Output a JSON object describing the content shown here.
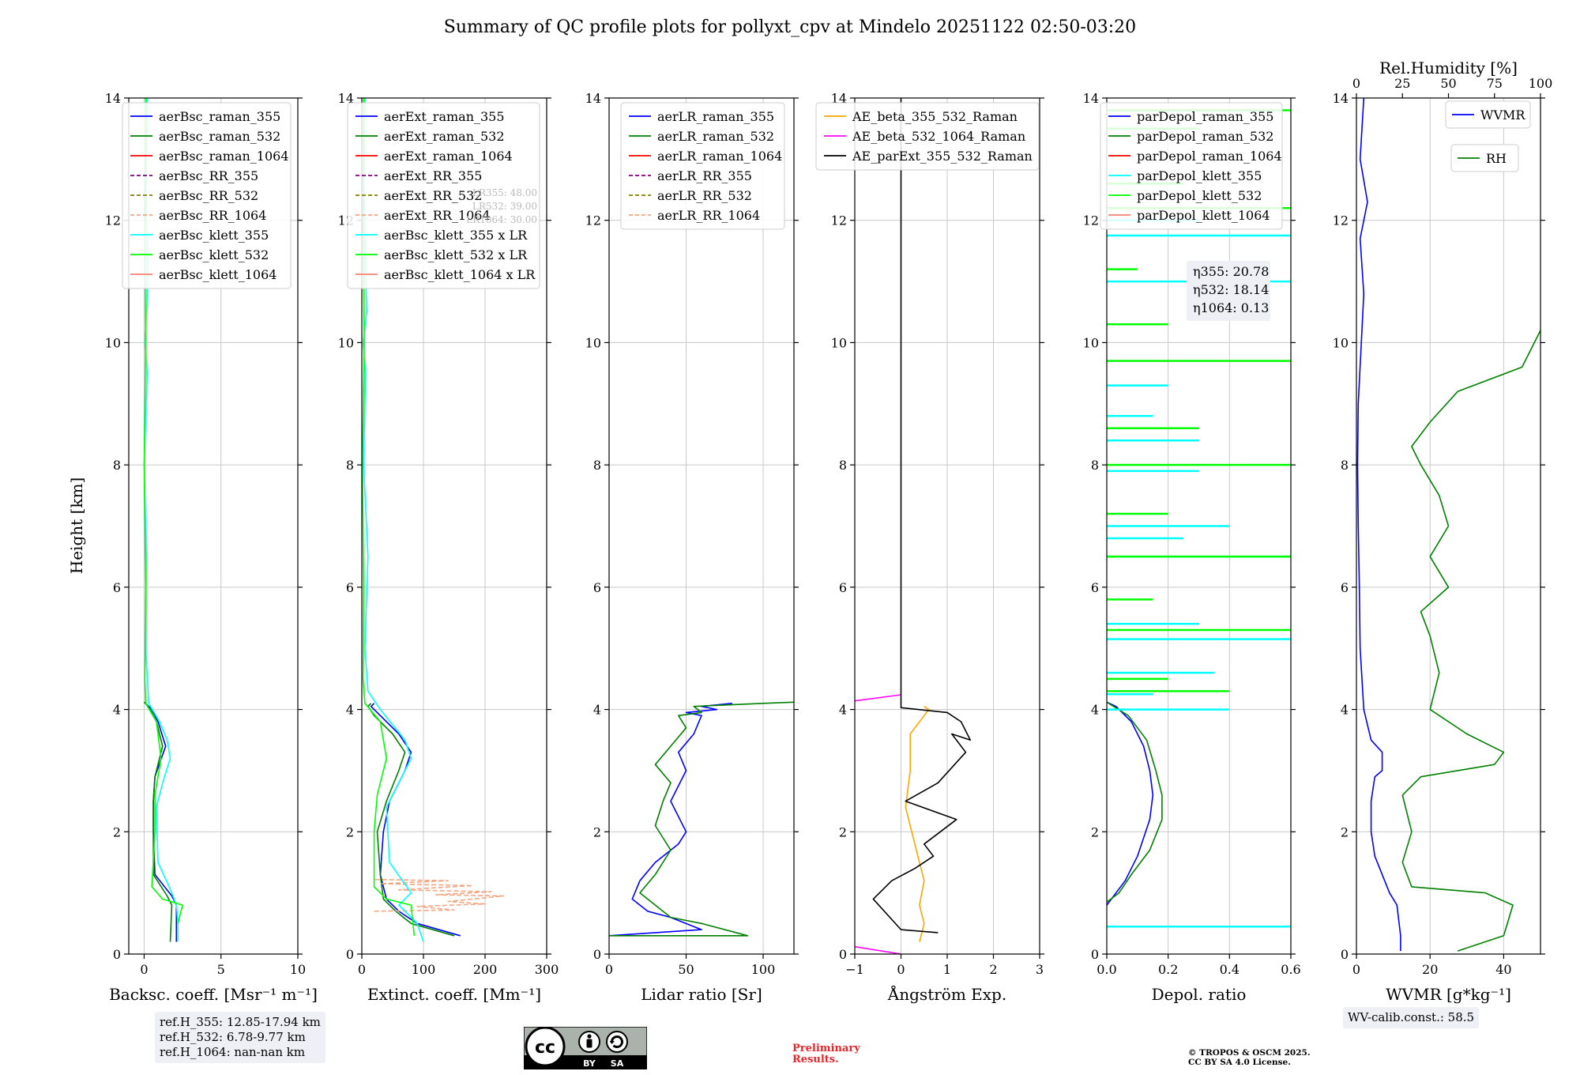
{
  "figure_title": "Summary of QC profile plots for pollyxt_cpv at Mindelo 20251122 02:50-03:20",
  "ref_heights": [
    "ref.H_355: 12.85-17.94 km",
    "ref.H_532: 6.78-9.77 km",
    "ref.H_1064: nan-nan km"
  ],
  "wv_calib": "WV-calib.const.: 58.5",
  "preliminary": [
    "Preliminary",
    "Results."
  ],
  "copyright": [
    "© TROPOS & OSCM 2025.",
    "CC BY SA 4.0 License."
  ],
  "cc_logo": {
    "icons": [
      "cc",
      "by",
      "sa"
    ],
    "labels": [
      "BY",
      "SA"
    ]
  },
  "chart_data": [
    {
      "type": "line",
      "id": "backscatter",
      "xlabel": "Backsc. coeff. [Msr$^{-1}$ m$^{-1}$]",
      "xlabel_text": "Backsc. coeff. [Msr⁻¹ m⁻¹]",
      "ylabel": "Height [km]",
      "xlim": [
        -1,
        10
      ],
      "ylim": [
        0,
        14
      ],
      "xticks": [
        0,
        5,
        10
      ],
      "yticks": [
        0,
        2,
        4,
        6,
        8,
        10,
        12,
        14
      ],
      "legend": [
        "aerBsc_raman_355",
        "aerBsc_raman_532",
        "aerBsc_raman_1064",
        "aerBsc_RR_355",
        "aerBsc_RR_532",
        "aerBsc_RR_1064",
        "aerBsc_klett_355",
        "aerBsc_klett_532",
        "aerBsc_klett_1064"
      ],
      "series": [
        {
          "name": "aerBsc_raman_355",
          "color": "#0000ff",
          "x": [
            2.1,
            2.1,
            1.8,
            0.7,
            0.6,
            0.6,
            0.7,
            1.4,
            0.9,
            0.5,
            0.0
          ],
          "y": [
            0.2,
            0.8,
            0.95,
            1.3,
            2.0,
            2.5,
            2.9,
            3.4,
            3.8,
            4.0,
            4.12
          ]
        },
        {
          "name": "aerBsc_raman_532",
          "color": "#008000",
          "x": [
            1.7,
            1.8,
            1.5,
            0.6,
            0.6,
            0.6,
            0.7,
            1.2,
            0.8,
            0.4,
            0.0
          ],
          "y": [
            0.2,
            0.8,
            0.95,
            1.3,
            2.0,
            2.5,
            2.9,
            3.4,
            3.8,
            4.0,
            4.12
          ]
        },
        {
          "name": "aerBsc_klett_355",
          "color": "#00ffff",
          "x": [
            0.2,
            0.1,
            0.25,
            0.05,
            0.2,
            0.0,
            0.15,
            0.1,
            0.3,
            1.0,
            1.5,
            1.7,
            1.2,
            0.8,
            0.9,
            1.8,
            2.1,
            2.2,
            2.2
          ],
          "y": [
            14.0,
            12.5,
            11.0,
            10.0,
            9.5,
            8.0,
            6.5,
            5.0,
            4.1,
            3.8,
            3.5,
            3.2,
            2.8,
            2.4,
            1.5,
            1.0,
            0.8,
            0.5,
            0.2
          ]
        },
        {
          "name": "aerBsc_klett_532",
          "color": "#00ff00",
          "x": [
            0.1,
            0.05,
            0.1,
            0.0,
            0.1,
            0.05,
            0.1,
            0.8,
            1.1,
            0.7,
            0.7,
            0.5,
            1.2,
            2.5,
            2.2
          ],
          "y": [
            14.0,
            12.0,
            10.0,
            8.0,
            6.0,
            4.5,
            4.1,
            3.8,
            3.2,
            2.6,
            2.0,
            1.1,
            0.9,
            0.8,
            0.5
          ]
        }
      ]
    },
    {
      "type": "line",
      "id": "extinction",
      "xlabel": "Extinct. coeff. [Mm$^{-1}$]",
      "xlabel_text": "Extinct. coeff. [Mm⁻¹]",
      "xlim": [
        0,
        300
      ],
      "ylim": [
        0,
        14
      ],
      "xticks": [
        0,
        100,
        200,
        300
      ],
      "yticks": [
        0,
        2,
        4,
        6,
        8,
        10,
        12,
        14
      ],
      "legend": [
        "aerExt_raman_355",
        "aerExt_raman_532",
        "aerExt_raman_1064",
        "aerExt_RR_355",
        "aerExt_RR_532",
        "aerExt_RR_1064",
        "aerBsc_klett_355 x LR",
        "aerBsc_klett_532 x LR",
        "aerBsc_klett_1064 x LR"
      ],
      "lr_annotation": [
        "LR355: 48.00",
        "LR532: 39.00",
        "LR1064: 30.00"
      ],
      "series": [
        {
          "name": "aerExt_raman_355",
          "color": "#0000ff",
          "x": [
            160,
            90,
            60,
            40,
            30,
            35,
            45,
            70,
            80,
            60,
            30,
            15,
            20
          ],
          "y": [
            0.3,
            0.5,
            0.7,
            0.9,
            1.3,
            2.0,
            2.5,
            3.0,
            3.3,
            3.6,
            3.9,
            4.05,
            4.1
          ]
        },
        {
          "name": "aerExt_raman_532",
          "color": "#008000",
          "x": [
            150,
            80,
            55,
            35,
            30,
            25,
            40,
            60,
            70,
            50,
            20,
            10,
            15
          ],
          "y": [
            0.3,
            0.5,
            0.7,
            0.9,
            1.3,
            2.0,
            2.5,
            3.0,
            3.3,
            3.6,
            3.9,
            4.05,
            4.1
          ]
        },
        {
          "name": "aerExt_RR_1064",
          "color": "#f4a582",
          "x": [
            20,
            150,
            90,
            200,
            140,
            230,
            120,
            210,
            60,
            180,
            30,
            140,
            20
          ],
          "y": [
            0.7,
            0.72,
            0.78,
            0.82,
            0.86,
            0.95,
            0.97,
            1.02,
            1.05,
            1.12,
            1.15,
            1.2,
            1.22
          ]
        },
        {
          "name": "aerBsc_klett_355 x LR",
          "color": "#00ffff",
          "x": [
            5,
            3,
            8,
            2,
            6,
            3,
            10,
            5,
            10,
            30,
            70,
            80,
            60,
            40,
            45,
            80,
            60,
            90,
            100
          ],
          "y": [
            14.0,
            12.5,
            10.5,
            10.0,
            9.5,
            8.0,
            6.5,
            5.0,
            4.3,
            4.0,
            3.5,
            3.2,
            2.8,
            2.4,
            1.5,
            1.0,
            0.8,
            0.5,
            0.2
          ]
        },
        {
          "name": "aerBsc_klett_532 x LR",
          "color": "#00ff00",
          "x": [
            3,
            2,
            4,
            1,
            3,
            2,
            5,
            30,
            40,
            25,
            20,
            20,
            40,
            80,
            85
          ],
          "y": [
            14.0,
            12.0,
            10.0,
            8.0,
            6.0,
            4.5,
            4.1,
            3.8,
            3.2,
            2.6,
            2.0,
            1.1,
            0.9,
            0.8,
            0.3
          ]
        }
      ]
    },
    {
      "type": "line",
      "id": "lidar_ratio",
      "xlabel": "Lidar ratio [Sr]",
      "xlabel_text": "Lidar ratio [Sr]",
      "xlim": [
        0,
        120
      ],
      "ylim": [
        0,
        14
      ],
      "xticks": [
        0,
        50,
        100
      ],
      "yticks": [
        0,
        2,
        4,
        6,
        8,
        10,
        12,
        14
      ],
      "legend": [
        "aerLR_raman_355",
        "aerLR_raman_532",
        "aerLR_raman_1064",
        "aerLR_RR_355",
        "aerLR_RR_532",
        "aerLR_RR_1064"
      ],
      "series": [
        {
          "name": "aerLR_raman_355",
          "color": "#0000ff",
          "x": [
            0,
            60,
            40,
            25,
            15,
            20,
            30,
            45,
            50,
            40,
            50,
            45,
            55,
            60,
            50,
            70,
            60,
            80
          ],
          "y": [
            0.3,
            0.4,
            0.6,
            0.7,
            0.9,
            1.2,
            1.5,
            1.8,
            2.0,
            2.5,
            3.0,
            3.3,
            3.6,
            3.9,
            3.95,
            4.0,
            4.05,
            4.1
          ]
        },
        {
          "name": "aerLR_raman_532",
          "color": "#008000",
          "x": [
            0,
            90,
            60,
            40,
            30,
            20,
            30,
            40,
            30,
            35,
            40,
            30,
            40,
            50,
            45,
            60,
            55,
            100,
            120
          ],
          "y": [
            0.3,
            0.3,
            0.5,
            0.6,
            0.8,
            1.0,
            1.3,
            1.7,
            2.1,
            2.5,
            2.8,
            3.1,
            3.4,
            3.7,
            3.9,
            3.95,
            4.05,
            4.1,
            4.12
          ]
        }
      ]
    },
    {
      "type": "line",
      "id": "angstrom",
      "xlabel": "Ångström Exp.",
      "xlabel_text": "Ångström Exp.",
      "xlim": [
        -1,
        3
      ],
      "ylim": [
        0,
        14
      ],
      "xticks": [
        -1,
        0,
        1,
        2,
        3
      ],
      "yticks": [
        0,
        2,
        4,
        6,
        8,
        10,
        12,
        14
      ],
      "legend": [
        "AE_beta_355_532_Raman",
        "AE_beta_532_1064_Raman",
        "AE_parExt_355_532_Raman"
      ],
      "series": [
        {
          "name": "AE_beta_355_532_Raman",
          "color": "#ffa500",
          "x": [
            0.4,
            0.5,
            0.4,
            0.5,
            0.3,
            0.1,
            0.2,
            0.2,
            0.5,
            0.6,
            0.5
          ],
          "y": [
            0.2,
            0.5,
            0.8,
            1.2,
            1.8,
            2.4,
            3.0,
            3.6,
            3.9,
            4.0,
            4.05
          ]
        },
        {
          "name": "AE_beta_532_1064_Raman",
          "color": "#ff00ff",
          "x": [
            0.0,
            -1.0
          ],
          "y": [
            0.0,
            0.12
          ]
        },
        {
          "name": "AE_beta_532_1064_Raman_upper",
          "color": "#ff00ff",
          "x": [
            0.0,
            -1.0
          ],
          "y": [
            4.24,
            4.14
          ]
        },
        {
          "name": "AE_parExt_355_532_Raman",
          "color": "#000000",
          "x": [
            0.8,
            0.0,
            -0.6,
            -0.2,
            0.3,
            0.7,
            0.5,
            1.2,
            0.1,
            0.8,
            1.4,
            1.1,
            1.5,
            1.3,
            1.0,
            0.0,
            0.0
          ],
          "y": [
            0.35,
            0.4,
            0.9,
            1.2,
            1.4,
            1.6,
            1.8,
            2.2,
            2.5,
            2.8,
            3.3,
            3.6,
            3.5,
            3.8,
            3.95,
            4.03,
            14.0
          ]
        }
      ]
    },
    {
      "type": "line",
      "id": "depol",
      "xlabel": "Depol. ratio",
      "xlabel_text": "Depol. ratio",
      "xlim": [
        0,
        0.6
      ],
      "ylim": [
        0,
        14
      ],
      "xticks": [
        0.0,
        0.2,
        0.4,
        0.6
      ],
      "yticks": [
        0,
        2,
        4,
        6,
        8,
        10,
        12,
        14
      ],
      "legend": [
        "parDepol_raman_355",
        "parDepol_raman_532",
        "parDepol_raman_1064",
        "parDepol_klett_355",
        "parDepol_klett_532",
        "parDepol_klett_1064"
      ],
      "eta_annotation": [
        "η355: 20.78",
        "η532: 18.14",
        "η1064: 0.13"
      ],
      "series": [
        {
          "name": "parDepol_raman_355",
          "color": "#0000ff",
          "x": [
            0.0,
            0.03,
            0.06,
            0.1,
            0.14,
            0.15,
            0.14,
            0.12,
            0.08,
            0.03,
            0.0
          ],
          "y": [
            0.8,
            1.0,
            1.2,
            1.6,
            2.2,
            2.6,
            3.0,
            3.4,
            3.8,
            4.05,
            4.12
          ]
        },
        {
          "name": "parDepol_raman_532",
          "color": "#008000",
          "x": [
            0.0,
            0.04,
            0.08,
            0.14,
            0.18,
            0.18,
            0.16,
            0.13,
            0.07,
            0.0
          ],
          "y": [
            0.85,
            1.0,
            1.3,
            1.7,
            2.2,
            2.6,
            3.0,
            3.5,
            3.9,
            4.12
          ]
        },
        {
          "name": "parDepol_klett_355",
          "color": "#00ffff",
          "spikes": true,
          "x": [
            0.6,
            0.4,
            0.15,
            0.35,
            0.6,
            0.3,
            0.6,
            0.25,
            0.4,
            0.3,
            0.3,
            0.15,
            0.2,
            0.6,
            0.6,
            0.3
          ],
          "y": [
            0.45,
            4.0,
            4.25,
            4.6,
            5.15,
            5.4,
            6.5,
            6.8,
            7.0,
            7.9,
            8.4,
            8.8,
            9.3,
            11.0,
            11.75,
            12.0
          ]
        },
        {
          "name": "parDepol_klett_532",
          "color": "#00ff00",
          "spikes": true,
          "x": [
            0.4,
            0.2,
            0.6,
            0.15,
            0.6,
            0.2,
            0.6,
            0.3,
            0.6,
            0.2,
            0.1,
            0.6,
            0.25,
            0.3,
            0.6
          ],
          "y": [
            4.3,
            4.5,
            5.3,
            5.8,
            6.5,
            7.2,
            8.0,
            8.6,
            9.7,
            10.3,
            11.2,
            12.2,
            12.6,
            13.5,
            13.8
          ]
        }
      ]
    },
    {
      "type": "line",
      "id": "wvmr",
      "xlabel": "WVMR [$g*kg^{-1}$]",
      "xlabel_text": "WVMR [g*kg⁻¹]",
      "top_xlabel": "Rel.Humidity [%]",
      "xlim": [
        0,
        50
      ],
      "xlim_top": [
        0,
        100
      ],
      "ylim": [
        0,
        14
      ],
      "xticks": [
        0,
        20,
        40
      ],
      "xticks_top": [
        0,
        25,
        50,
        75,
        100
      ],
      "yticks": [
        0,
        2,
        4,
        6,
        8,
        10,
        12,
        14
      ],
      "legend": [
        "WVMR",
        "RH"
      ],
      "series": [
        {
          "name": "WVMR",
          "color": "#0000ff",
          "x": [
            12,
            12,
            11,
            9,
            7,
            5,
            4,
            4,
            5,
            7,
            7,
            4,
            2,
            1,
            0.8,
            0.5,
            0.3,
            0.5,
            2,
            1,
            3,
            1,
            2
          ],
          "y": [
            0.05,
            0.3,
            0.8,
            1.0,
            1.3,
            1.6,
            2.0,
            2.5,
            2.9,
            3.0,
            3.3,
            3.5,
            4.0,
            5.0,
            6.0,
            7.0,
            8.0,
            9.0,
            10.8,
            11.7,
            12.3,
            13.0,
            14.0
          ]
        },
        {
          "name": "RH",
          "color": "#008000",
          "axis": "top",
          "x": [
            55,
            80,
            85,
            70,
            30,
            25,
            30,
            25,
            35,
            75,
            80,
            60,
            40,
            45,
            40,
            35,
            50,
            40,
            50,
            45,
            35,
            30,
            40,
            55,
            90,
            100
          ],
          "y": [
            0.05,
            0.3,
            0.8,
            1.0,
            1.1,
            1.5,
            2.0,
            2.6,
            2.9,
            3.1,
            3.3,
            3.6,
            4.0,
            4.6,
            5.2,
            5.6,
            6.0,
            6.5,
            7.0,
            7.5,
            8.0,
            8.3,
            8.7,
            9.2,
            9.6,
            10.2
          ]
        }
      ]
    }
  ]
}
